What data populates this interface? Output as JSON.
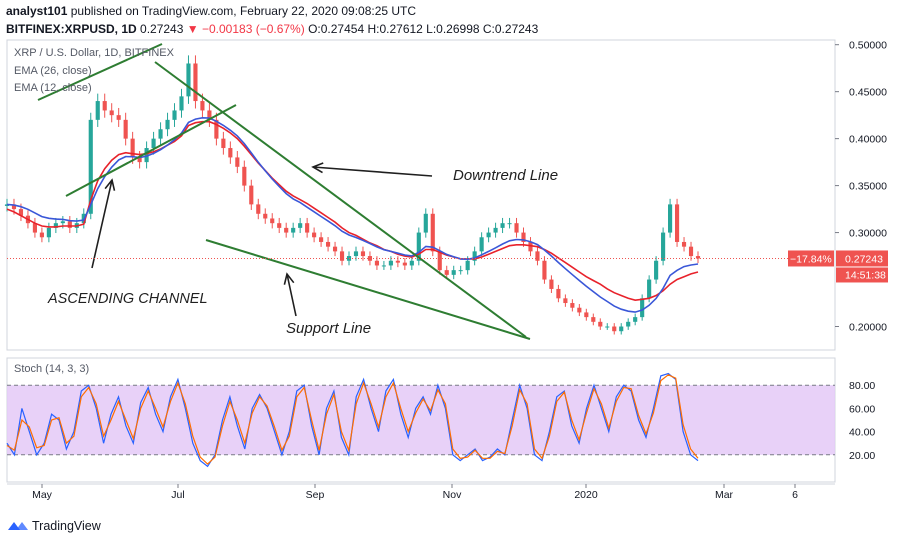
{
  "header": {
    "line1_user": "analyst101",
    "line1_rest": "published on TradingView.com, February 22, 2020 09:08:25 UTC",
    "line2_symbol": "BITFINEX:XRPUSD, 1D",
    "line2_last": "0.27243",
    "line2_change": "▼ −0.00183 (−0.67%)",
    "line2_ohlc": "O:0.27454 H:0.27612 L:0.26998 C:0.27243"
  },
  "chart_data": [
    {
      "type": "candlestick",
      "title": "XRP / U.S. Dollar, 1D, BITFINEX",
      "indicators": [
        {
          "name": "EMA (26, close)",
          "color": "#e8222b"
        },
        {
          "name": "EMA (12, close)",
          "color": "#3a57d8"
        }
      ],
      "x_ticks": [
        "May",
        "Jul",
        "Sep",
        "Nov",
        "2020",
        "Mar",
        "6"
      ],
      "y_ticks": [
        "0.50000",
        "0.45000",
        "0.40000",
        "0.35000",
        "0.30000",
        "0.20000"
      ],
      "ylim": [
        0.175,
        0.505
      ],
      "last_price": 0.27243,
      "price_label": "0.27243",
      "change_label": "−17.84%",
      "countdown_label": "14:51:38",
      "annotations": {
        "downtrend": "Downtrend  Line",
        "channel": "ASCENDING CHANNEL",
        "support": "Support Line"
      },
      "candle_color_up": "#26a69a",
      "candle_color_down": "#ef5350",
      "closes": [
        0.33,
        0.325,
        0.318,
        0.31,
        0.3,
        0.295,
        0.305,
        0.31,
        0.312,
        0.305,
        0.31,
        0.32,
        0.42,
        0.44,
        0.43,
        0.425,
        0.42,
        0.4,
        0.38,
        0.375,
        0.39,
        0.4,
        0.41,
        0.42,
        0.43,
        0.445,
        0.48,
        0.44,
        0.43,
        0.42,
        0.4,
        0.39,
        0.38,
        0.37,
        0.35,
        0.33,
        0.32,
        0.315,
        0.31,
        0.305,
        0.3,
        0.305,
        0.31,
        0.3,
        0.295,
        0.29,
        0.285,
        0.28,
        0.27,
        0.275,
        0.28,
        0.275,
        0.27,
        0.265,
        0.265,
        0.27,
        0.268,
        0.265,
        0.27,
        0.3,
        0.32,
        0.28,
        0.26,
        0.255,
        0.26,
        0.26,
        0.27,
        0.28,
        0.295,
        0.3,
        0.305,
        0.31,
        0.31,
        0.3,
        0.29,
        0.28,
        0.27,
        0.25,
        0.24,
        0.23,
        0.225,
        0.22,
        0.215,
        0.21,
        0.205,
        0.2,
        0.2,
        0.195,
        0.2,
        0.205,
        0.21,
        0.23,
        0.25,
        0.27,
        0.3,
        0.33,
        0.29,
        0.285,
        0.275,
        0.27243
      ],
      "ema26": [
        0.325,
        0.322,
        0.318,
        0.314,
        0.31,
        0.307,
        0.306,
        0.306,
        0.307,
        0.307,
        0.307,
        0.309,
        0.335,
        0.355,
        0.368,
        0.377,
        0.383,
        0.385,
        0.384,
        0.383,
        0.384,
        0.386,
        0.389,
        0.393,
        0.397,
        0.403,
        0.414,
        0.417,
        0.418,
        0.418,
        0.415,
        0.411,
        0.406,
        0.4,
        0.392,
        0.383,
        0.374,
        0.366,
        0.358,
        0.351,
        0.344,
        0.339,
        0.335,
        0.331,
        0.326,
        0.321,
        0.316,
        0.311,
        0.305,
        0.3,
        0.297,
        0.293,
        0.289,
        0.286,
        0.282,
        0.28,
        0.277,
        0.275,
        0.274,
        0.277,
        0.282,
        0.282,
        0.279,
        0.276,
        0.274,
        0.272,
        0.272,
        0.272,
        0.274,
        0.277,
        0.28,
        0.283,
        0.286,
        0.287,
        0.287,
        0.286,
        0.285,
        0.282,
        0.278,
        0.273,
        0.268,
        0.263,
        0.258,
        0.253,
        0.249,
        0.245,
        0.24,
        0.236,
        0.233,
        0.23,
        0.228,
        0.229,
        0.23,
        0.233,
        0.238,
        0.245,
        0.25,
        0.253,
        0.256,
        0.258
      ]
    },
    {
      "type": "line",
      "title": "Stoch (14, 3, 3)",
      "y_ticks": [
        "80.00",
        "60.00",
        "40.00",
        "20.00"
      ],
      "ylim": [
        0,
        100
      ],
      "band": [
        20,
        80
      ],
      "series": [
        {
          "name": "%K",
          "color": "#2962ff",
          "values": [
            30,
            20,
            60,
            40,
            20,
            30,
            55,
            50,
            25,
            40,
            75,
            80,
            60,
            30,
            55,
            70,
            45,
            30,
            65,
            78,
            55,
            40,
            70,
            85,
            60,
            30,
            15,
            10,
            20,
            50,
            70,
            45,
            25,
            60,
            72,
            60,
            40,
            20,
            40,
            75,
            80,
            45,
            20,
            60,
            75,
            35,
            20,
            70,
            85,
            60,
            40,
            75,
            85,
            55,
            35,
            60,
            70,
            55,
            80,
            60,
            20,
            15,
            20,
            25,
            15,
            18,
            25,
            20,
            50,
            80,
            60,
            20,
            15,
            40,
            70,
            75,
            45,
            30,
            60,
            80,
            60,
            40,
            70,
            80,
            75,
            50,
            35,
            60,
            88,
            90,
            85,
            40,
            20,
            15
          ]
        },
        {
          "name": "%D",
          "color": "#ff6d00",
          "values": [
            28,
            24,
            50,
            44,
            26,
            28,
            50,
            52,
            30,
            36,
            70,
            78,
            64,
            36,
            50,
            66,
            50,
            34,
            60,
            75,
            60,
            44,
            66,
            82,
            64,
            36,
            18,
            12,
            18,
            45,
            66,
            50,
            30,
            56,
            70,
            62,
            44,
            24,
            36,
            70,
            78,
            50,
            24,
            55,
            72,
            40,
            24,
            64,
            82,
            64,
            44,
            70,
            82,
            60,
            40,
            56,
            68,
            58,
            76,
            64,
            25,
            17,
            18,
            24,
            17,
            17,
            23,
            21,
            45,
            76,
            64,
            25,
            17,
            36,
            66,
            74,
            50,
            33,
            56,
            77,
            64,
            43,
            66,
            78,
            77,
            54,
            38,
            56,
            84,
            89,
            86,
            46,
            25,
            17
          ]
        }
      ]
    }
  ],
  "footer": {
    "brand": "TradingView"
  }
}
